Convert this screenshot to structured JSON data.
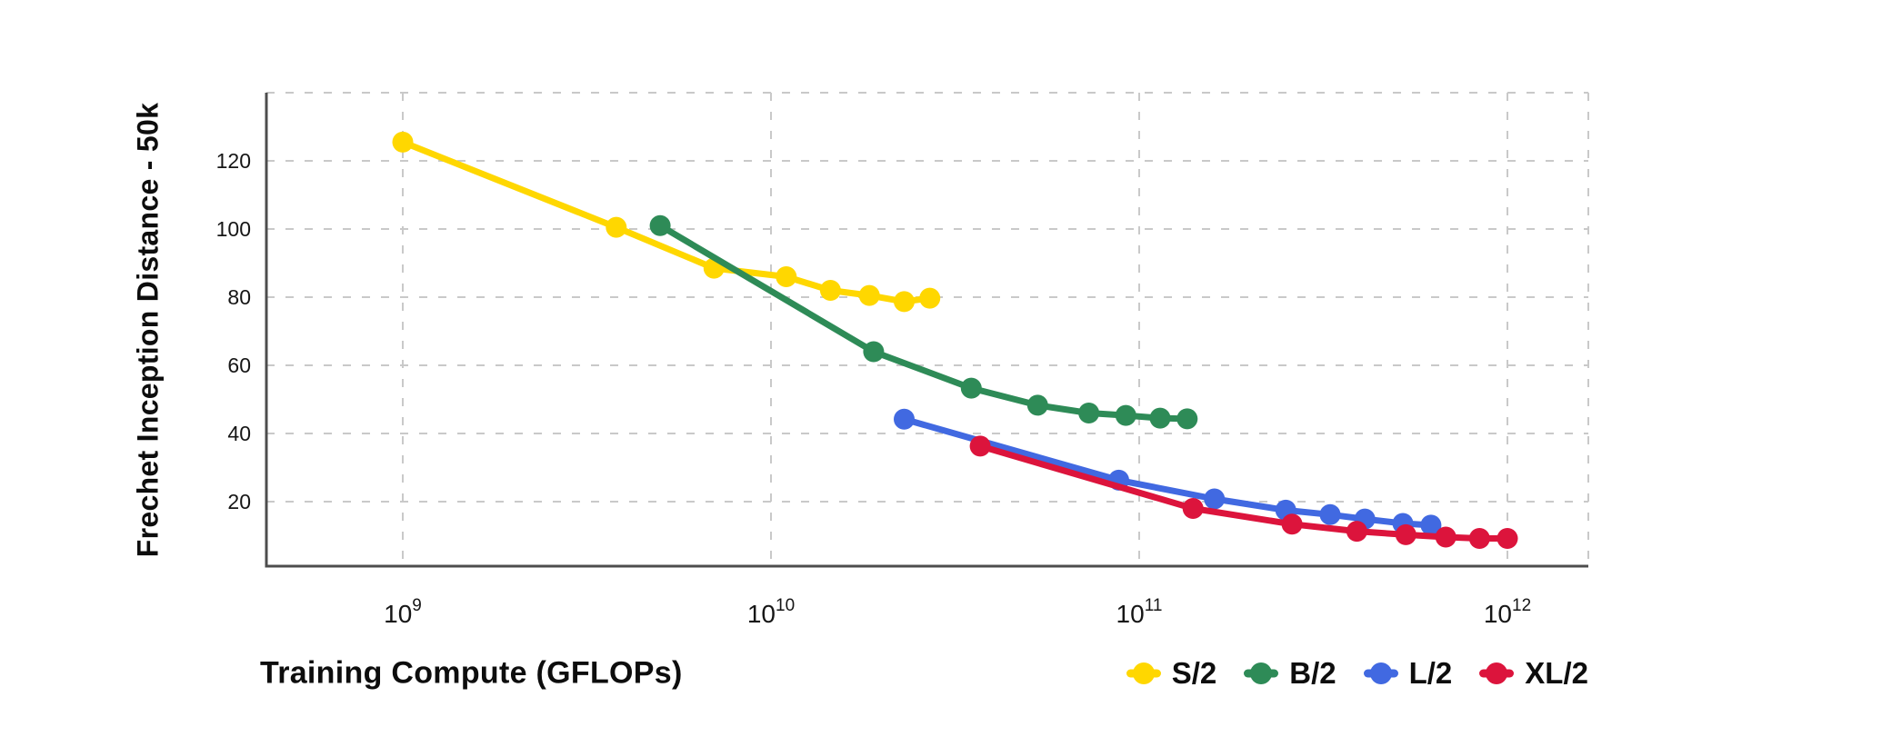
{
  "chart_data": {
    "type": "line",
    "title": "",
    "xlabel": "Training Compute (GFLOPs)",
    "ylabel": "Frechet Inception Distance - 50k",
    "x_scale": "log",
    "y_scale": "linear",
    "xlim": [
      430000000.0,
      1660000000000.0
    ],
    "ylim": [
      0,
      140
    ],
    "grid": "dashed",
    "legend_position": "bottom-right",
    "x_ticks": [
      {
        "value": 1000000000.0,
        "base": "10",
        "sup": "9"
      },
      {
        "value": 10000000000.0,
        "base": "10",
        "sup": "10"
      },
      {
        "value": 100000000000.0,
        "base": "10",
        "sup": "11"
      },
      {
        "value": 1000000000000.0,
        "base": "10",
        "sup": "12"
      }
    ],
    "y_ticks": [
      20,
      40,
      60,
      80,
      100,
      120
    ],
    "y_gridlines": [
      20,
      40,
      60,
      80,
      100,
      120,
      140
    ],
    "series": [
      {
        "name": "S/2",
        "color": "#FFD700",
        "points": [
          [
            1000000000.0,
            125.5
          ],
          [
            3800000000.0,
            100.5
          ],
          [
            7000000000.0,
            88.5
          ],
          [
            11000000000.0,
            86.0
          ],
          [
            14500000000.0,
            82.0
          ],
          [
            18500000000.0,
            80.5
          ],
          [
            23000000000.0,
            78.7
          ],
          [
            27000000000.0,
            79.7
          ]
        ]
      },
      {
        "name": "B/2",
        "color": "#2E8B57",
        "points": [
          [
            5000000000.0,
            101.0
          ],
          [
            19000000000.0,
            64.0
          ],
          [
            35000000000.0,
            53.3
          ],
          [
            53000000000.0,
            48.3
          ],
          [
            73000000000.0,
            46.0
          ],
          [
            92000000000.0,
            45.3
          ],
          [
            114000000000.0,
            44.5
          ],
          [
            135000000000.0,
            44.3
          ]
        ]
      },
      {
        "name": "L/2",
        "color": "#4169E1",
        "points": [
          [
            23000000000.0,
            44.2
          ],
          [
            88000000000.0,
            26.3
          ],
          [
            160000000000.0,
            20.8
          ],
          [
            250000000000.0,
            17.5
          ],
          [
            330000000000.0,
            16.2
          ],
          [
            410000000000.0,
            14.9
          ],
          [
            520000000000.0,
            13.6
          ],
          [
            620000000000.0,
            13.1
          ]
        ]
      },
      {
        "name": "XL/2",
        "color": "#DC143C",
        "points": [
          [
            37000000000.0,
            36.3
          ],
          [
            140000000000.0,
            18.0
          ],
          [
            260000000000.0,
            13.4
          ],
          [
            390000000000.0,
            11.3
          ],
          [
            530000000000.0,
            10.3
          ],
          [
            680000000000.0,
            9.6
          ],
          [
            840000000000.0,
            9.2
          ],
          [
            1000000000000.0,
            9.2
          ]
        ]
      }
    ]
  }
}
